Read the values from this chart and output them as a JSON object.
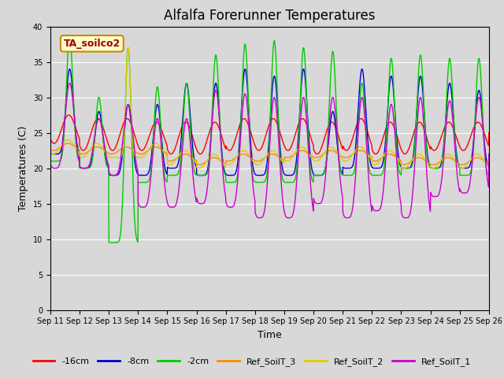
{
  "title": "Alfalfa Forerunner Temperatures",
  "xlabel": "Time",
  "ylabel": "Temperatures (C)",
  "ylim": [
    0,
    40
  ],
  "yticks": [
    0,
    5,
    10,
    15,
    20,
    25,
    30,
    35,
    40
  ],
  "annotation": "TA_soilco2",
  "legend": [
    "-16cm",
    "-8cm",
    "-2cm",
    "Ref_SoilT_3",
    "Ref_SoilT_2",
    "Ref_SoilT_1"
  ],
  "colors": [
    "#ff0000",
    "#0000cc",
    "#00cc00",
    "#ff8800",
    "#ddcc00",
    "#cc00cc"
  ],
  "fig_facecolor": "#d8d8d8",
  "ax_facecolor": "#d8d8d8",
  "xtick_labels": [
    "Sep 11",
    "Sep 12",
    "Sep 13",
    "Sep 14",
    "Sep 15",
    "Sep 16",
    "Sep 17",
    "Sep 18",
    "Sep 19",
    "Sep 20",
    "Sep 21",
    "Sep 22",
    "Sep 23",
    "Sep 24",
    "Sep 25",
    "Sep 26"
  ],
  "title_fontsize": 12,
  "tick_fontsize": 7,
  "axis_label_fontsize": 9,
  "legend_fontsize": 8,
  "linewidth": 1.0
}
